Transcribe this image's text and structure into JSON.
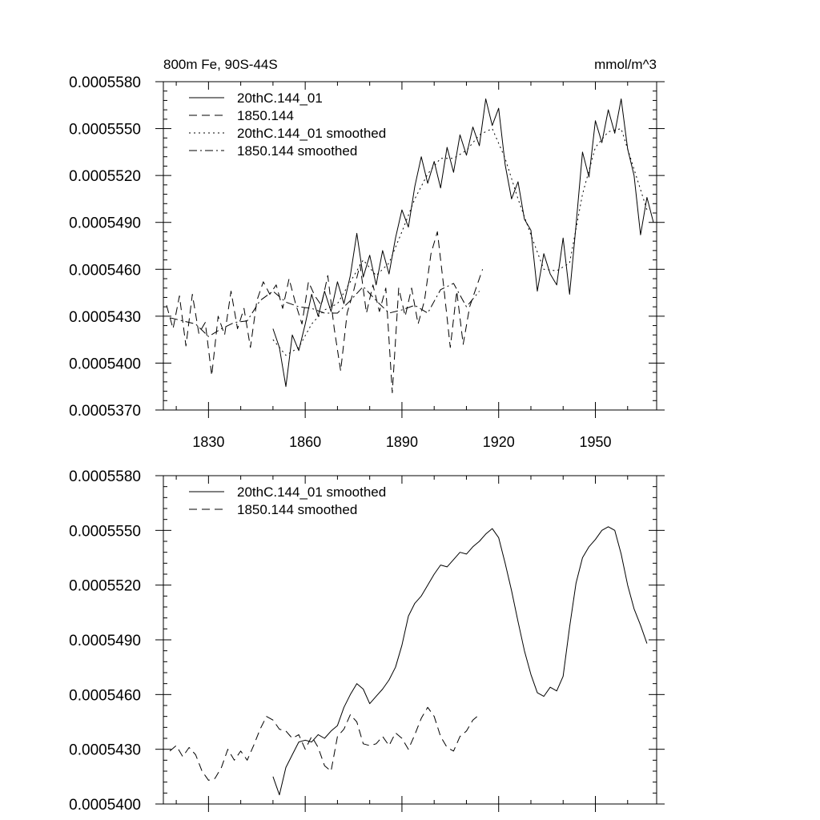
{
  "chart_data": [
    {
      "type": "line",
      "title_left": "800m Fe, 90S-44S",
      "title_right": "mmol/m^3",
      "xlim": [
        1816,
        1969
      ],
      "ylim": [
        0.000537,
        0.000558
      ],
      "x_ticks": [
        1830,
        1860,
        1890,
        1920,
        1950
      ],
      "x_tick_labels": [
        "1830",
        "1860",
        "1890",
        "1920",
        "1950"
      ],
      "y_ticks": [
        0.000537,
        0.00054,
        0.000543,
        0.000546,
        0.000549,
        0.000552,
        0.000555,
        0.000558
      ],
      "y_tick_labels": [
        "0.0005370",
        "0.0005400",
        "0.0005430",
        "0.0005460",
        "0.0005490",
        "0.0005520",
        "0.0005550",
        "0.0005580"
      ],
      "legend_position": "top-left",
      "series": [
        {
          "name": "20thC.144_01",
          "style": "solid",
          "x": [
            1850,
            1852,
            1854,
            1856,
            1858,
            1860,
            1862,
            1864,
            1866,
            1868,
            1870,
            1872,
            1874,
            1876,
            1878,
            1880,
            1882,
            1884,
            1886,
            1888,
            1890,
            1892,
            1894,
            1896,
            1898,
            1900,
            1902,
            1904,
            1906,
            1908,
            1910,
            1912,
            1914,
            1916,
            1918,
            1920,
            1922,
            1924,
            1926,
            1928,
            1930,
            1932,
            1934,
            1936,
            1938,
            1940,
            1942,
            1944,
            1946,
            1948,
            1950,
            1952,
            1954,
            1956,
            1958,
            1960,
            1962,
            1964,
            1966,
            1968
          ],
          "y": [
            0.0005422,
            0.000541,
            0.0005385,
            0.0005418,
            0.0005408,
            0.0005425,
            0.0005444,
            0.000543,
            0.0005446,
            0.0005433,
            0.0005452,
            0.0005438,
            0.0005456,
            0.0005483,
            0.0005455,
            0.0005469,
            0.000545,
            0.0005472,
            0.0005457,
            0.000548,
            0.0005498,
            0.0005487,
            0.0005513,
            0.0005532,
            0.0005515,
            0.0005529,
            0.0005512,
            0.0005538,
            0.0005522,
            0.0005546,
            0.0005533,
            0.0005551,
            0.0005539,
            0.0005569,
            0.0005552,
            0.0005563,
            0.0005527,
            0.0005505,
            0.0005516,
            0.0005492,
            0.0005485,
            0.0005446,
            0.000547,
            0.0005457,
            0.000545,
            0.000548,
            0.0005444,
            0.0005488,
            0.0005535,
            0.0005519,
            0.0005555,
            0.0005541,
            0.0005562,
            0.0005547,
            0.0005569,
            0.0005537,
            0.000552,
            0.0005482,
            0.0005506,
            0.000549
          ]
        },
        {
          "name": "1850.144",
          "style": "dashed",
          "x": [
            1817,
            1819,
            1821,
            1823,
            1825,
            1827,
            1829,
            1831,
            1833,
            1835,
            1837,
            1839,
            1841,
            1843,
            1845,
            1847,
            1849,
            1851,
            1853,
            1855,
            1857,
            1859,
            1861,
            1863,
            1865,
            1867,
            1869,
            1871,
            1873,
            1875,
            1877,
            1879,
            1881,
            1883,
            1885,
            1887,
            1889,
            1891,
            1893,
            1895,
            1897,
            1899,
            1901,
            1903,
            1905,
            1907,
            1909,
            1911,
            1913,
            1915
          ],
          "y": [
            0.0005437,
            0.0005422,
            0.0005443,
            0.0005411,
            0.0005444,
            0.0005419,
            0.0005426,
            0.0005392,
            0.000543,
            0.0005418,
            0.0005446,
            0.0005422,
            0.0005435,
            0.000541,
            0.000544,
            0.0005452,
            0.0005444,
            0.000545,
            0.0005435,
            0.0005454,
            0.0005438,
            0.0005425,
            0.0005452,
            0.0005443,
            0.0005437,
            0.0005456,
            0.0005422,
            0.0005395,
            0.0005432,
            0.0005446,
            0.0005463,
            0.0005432,
            0.000545,
            0.0005433,
            0.0005448,
            0.0005381,
            0.0005448,
            0.000543,
            0.0005448,
            0.0005425,
            0.000544,
            0.000547,
            0.0005484,
            0.0005448,
            0.000541,
            0.0005446,
            0.0005412,
            0.0005436,
            0.0005448,
            0.000546
          ]
        },
        {
          "name": "20thC.144_01 smoothed",
          "style": "dotted",
          "x": [
            1850,
            1854,
            1858,
            1862,
            1866,
            1870,
            1874,
            1878,
            1882,
            1886,
            1890,
            1894,
            1898,
            1902,
            1906,
            1910,
            1914,
            1918,
            1922,
            1926,
            1930,
            1934,
            1938,
            1942,
            1946,
            1950,
            1954,
            1958,
            1962,
            1966
          ],
          "y": [
            0.0005415,
            0.0005405,
            0.000541,
            0.0005425,
            0.0005434,
            0.0005438,
            0.0005452,
            0.0005466,
            0.0005456,
            0.0005464,
            0.0005484,
            0.0005505,
            0.0005521,
            0.0005531,
            0.0005531,
            0.0005536,
            0.0005546,
            0.000555,
            0.0005531,
            0.0005505,
            0.0005482,
            0.000546,
            0.0005459,
            0.0005464,
            0.0005508,
            0.0005538,
            0.0005548,
            0.000555,
            0.0005524,
            0.0005498
          ]
        },
        {
          "name": "1850.144 smoothed",
          "style": "dashdot",
          "x": [
            1818,
            1822,
            1826,
            1830,
            1834,
            1838,
            1842,
            1846,
            1850,
            1854,
            1858,
            1862,
            1866,
            1870,
            1874,
            1878,
            1882,
            1886,
            1890,
            1894,
            1898,
            1902,
            1906,
            1910,
            1914
          ],
          "y": [
            0.0005429,
            0.0005427,
            0.0005425,
            0.0005417,
            0.0005422,
            0.0005426,
            0.0005427,
            0.000544,
            0.0005446,
            0.0005439,
            0.0005436,
            0.0005435,
            0.0005432,
            0.0005432,
            0.000544,
            0.0005449,
            0.000544,
            0.0005432,
            0.0005434,
            0.0005437,
            0.0005432,
            0.0005447,
            0.0005451,
            0.0005436,
            0.0005446
          ]
        }
      ]
    },
    {
      "type": "line",
      "xlim": [
        1816,
        1969
      ],
      "ylim": [
        0.00054,
        0.000558
      ],
      "x_ticks": [
        1830,
        1860,
        1890,
        1920,
        1950
      ],
      "y_ticks": [
        0.00054,
        0.000543,
        0.000546,
        0.000549,
        0.000552,
        0.000555,
        0.000558
      ],
      "y_tick_labels": [
        "0.0005400",
        "0.0005430",
        "0.0005460",
        "0.0005490",
        "0.0005520",
        "0.0005550",
        "0.0005580"
      ],
      "legend_position": "top-left",
      "series": [
        {
          "name": "20thC.144_01 smoothed",
          "style": "solid",
          "x": [
            1850,
            1852,
            1854,
            1856,
            1858,
            1860,
            1862,
            1864,
            1866,
            1868,
            1870,
            1872,
            1874,
            1876,
            1878,
            1880,
            1882,
            1884,
            1886,
            1888,
            1890,
            1892,
            1894,
            1896,
            1898,
            1900,
            1902,
            1904,
            1906,
            1908,
            1910,
            1912,
            1914,
            1916,
            1918,
            1920,
            1922,
            1924,
            1926,
            1928,
            1930,
            1932,
            1934,
            1936,
            1938,
            1940,
            1942,
            1944,
            1946,
            1948,
            1950,
            1952,
            1954,
            1956,
            1958,
            1960,
            1962,
            1964,
            1966
          ],
          "y": [
            0.0005415,
            0.0005405,
            0.000542,
            0.0005427,
            0.0005434,
            0.0005435,
            0.0005434,
            0.0005438,
            0.0005436,
            0.000544,
            0.0005443,
            0.0005453,
            0.000546,
            0.0005466,
            0.0005463,
            0.0005455,
            0.0005459,
            0.0005463,
            0.0005468,
            0.0005475,
            0.0005487,
            0.0005503,
            0.000551,
            0.0005514,
            0.000552,
            0.0005526,
            0.0005531,
            0.000553,
            0.0005534,
            0.0005538,
            0.0005537,
            0.0005541,
            0.0005544,
            0.0005548,
            0.0005551,
            0.0005546,
            0.0005532,
            0.0005517,
            0.00055,
            0.0005484,
            0.0005471,
            0.0005461,
            0.0005459,
            0.0005464,
            0.0005462,
            0.000547,
            0.0005497,
            0.0005521,
            0.0005535,
            0.0005541,
            0.0005545,
            0.000555,
            0.0005552,
            0.000555,
            0.0005537,
            0.000552,
            0.0005507,
            0.0005498,
            0.0005488
          ]
        },
        {
          "name": "1850.144 smoothed",
          "style": "dashed",
          "x": [
            1818,
            1820,
            1822,
            1824,
            1826,
            1828,
            1830,
            1832,
            1834,
            1836,
            1838,
            1840,
            1842,
            1844,
            1846,
            1848,
            1850,
            1852,
            1854,
            1856,
            1858,
            1860,
            1862,
            1864,
            1866,
            1868,
            1870,
            1872,
            1874,
            1876,
            1878,
            1880,
            1882,
            1884,
            1886,
            1888,
            1890,
            1892,
            1894,
            1896,
            1898,
            1900,
            1902,
            1904,
            1906,
            1908,
            1910,
            1912,
            1914
          ],
          "y": [
            0.0005429,
            0.0005432,
            0.0005426,
            0.0005431,
            0.0005427,
            0.0005418,
            0.0005413,
            0.0005414,
            0.000542,
            0.000543,
            0.0005424,
            0.0005429,
            0.0005424,
            0.0005432,
            0.0005441,
            0.0005448,
            0.0005446,
            0.0005441,
            0.000544,
            0.0005436,
            0.0005438,
            0.000543,
            0.0005437,
            0.0005431,
            0.0005421,
            0.0005418,
            0.0005437,
            0.0005441,
            0.0005449,
            0.0005445,
            0.0005433,
            0.0005432,
            0.0005433,
            0.0005437,
            0.0005432,
            0.0005439,
            0.0005436,
            0.000543,
            0.0005438,
            0.0005447,
            0.0005453,
            0.0005448,
            0.0005437,
            0.0005431,
            0.0005429,
            0.0005437,
            0.000544,
            0.0005446,
            0.0005449
          ]
        }
      ]
    }
  ]
}
